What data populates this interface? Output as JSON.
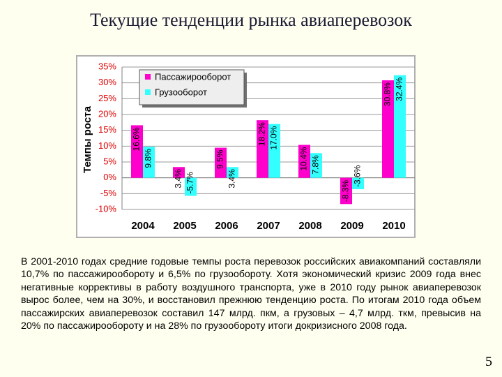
{
  "title": "Текущие тенденции рынка авиаперевозок",
  "chart_data": {
    "type": "bar",
    "ylabel": "Темпы роста",
    "categories": [
      "2004",
      "2005",
      "2006",
      "2007",
      "2008",
      "2009",
      "2010"
    ],
    "series": [
      {
        "name": "Пассажирооборот",
        "color": "#ff00cc",
        "values": [
          16.6,
          3.4,
          9.5,
          18.2,
          10.4,
          -8.3,
          30.8
        ],
        "value_labels": [
          "16.6%",
          "3.4%",
          "9.5%",
          "18.2%",
          "10.4%",
          "-8.3%",
          "30.8%"
        ]
      },
      {
        "name": "Грузооборот",
        "color": "#33ffff",
        "values": [
          9.8,
          -5.7,
          3.4,
          17.0,
          7.8,
          -3.6,
          32.4
        ],
        "value_labels": [
          "9.8%",
          "-5.7%",
          "3.4%",
          "17.0%",
          "7.8%",
          "-3.6%",
          "32.4%"
        ]
      }
    ],
    "ylim": [
      -10,
      35
    ],
    "yticks": [
      {
        "value": -10,
        "label": "-10%"
      },
      {
        "value": -5,
        "label": "-5%"
      },
      {
        "value": 0,
        "label": "0%"
      },
      {
        "value": 5,
        "label": "5%"
      },
      {
        "value": 10,
        "label": "10%"
      },
      {
        "value": 15,
        "label": "15%"
      },
      {
        "value": 20,
        "label": "20%"
      },
      {
        "value": 25,
        "label": "25%"
      },
      {
        "value": 30,
        "label": "30%"
      },
      {
        "value": 35,
        "label": "35%"
      }
    ],
    "grid": true,
    "legend": "upper left"
  },
  "body": "В 2001-2010 годах средние годовые темпы роста перевозок российских авиакомпаний составляли 10,7% по пассажирообороту и 6,5% по грузообороту. Хотя экономический кризис 2009 года внес негативные коррективы в работу воздушного транспорта, уже в 2010 году рынок авиаперевозок вырос более, чем на 30%, и восстановил прежнюю тенденцию роста. По итогам 2010 года объем пассажирских авиаперевозок составил 147 млрд. пкм, а грузовых – 4,7 млрд. ткм, превысив на 20% по пассажирообороту и на 28% по грузообороту итоги докризисного 2008 года.",
  "page_number": 5
}
